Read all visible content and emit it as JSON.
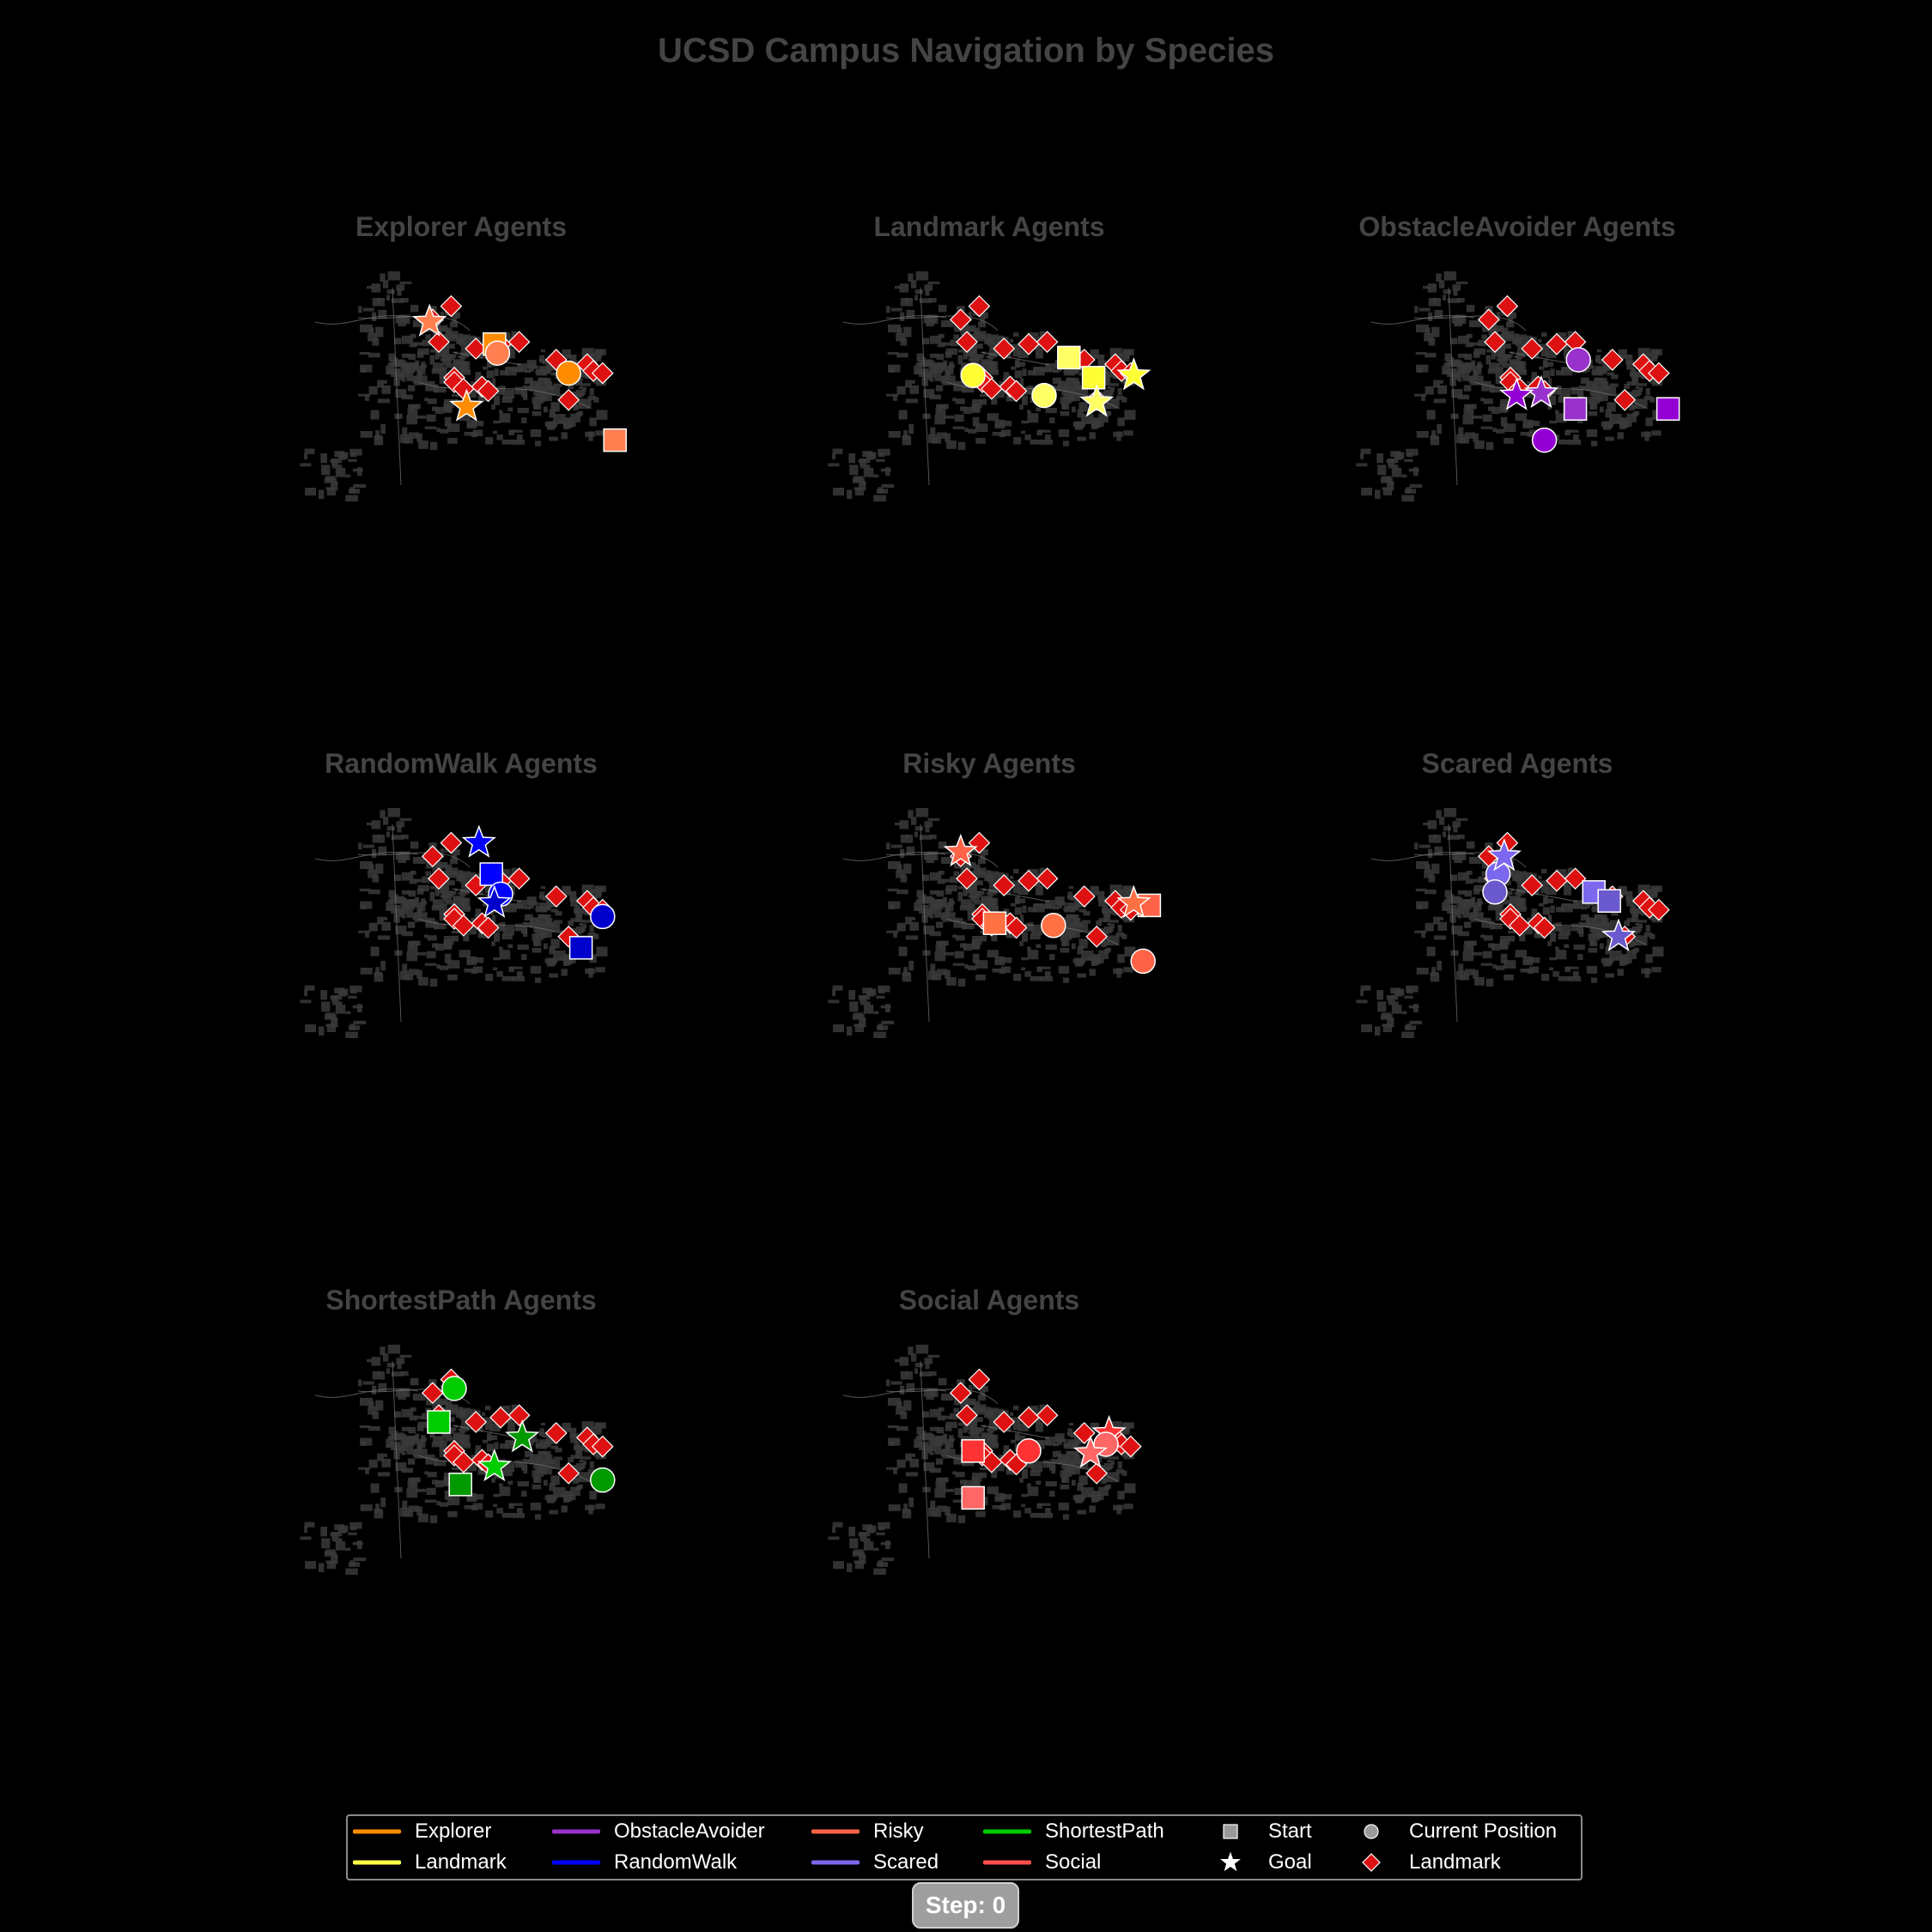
{
  "title": "UCSD Campus Navigation by Species",
  "step_label": "Step: 0",
  "colors": {
    "landmark": "#dd1111",
    "outline": "#ffffff",
    "map_building": "#3a3a3a",
    "map_road": "#777777",
    "title_text": "#444444"
  },
  "legend": {
    "species": [
      {
        "label": "Explorer",
        "color": "#ff8c00"
      },
      {
        "label": "Landmark",
        "color": "#ffff44"
      },
      {
        "label": "ObstacleAvoider",
        "color": "#9932cc"
      },
      {
        "label": "RandomWalk",
        "color": "#0000ff"
      },
      {
        "label": "Risky",
        "color": "#ff6347"
      },
      {
        "label": "Scared",
        "color": "#7b68ee"
      },
      {
        "label": "ShortestPath",
        "color": "#00cc00"
      },
      {
        "label": "Social",
        "color": "#ff4d4d"
      }
    ],
    "markers": [
      {
        "label": "Start",
        "shape": "square"
      },
      {
        "label": "Goal",
        "shape": "star"
      },
      {
        "label": "Current Position",
        "shape": "circle"
      },
      {
        "label": "Landmark",
        "shape": "diamond"
      }
    ]
  },
  "chart_data": {
    "type": "scatter",
    "title": "UCSD Campus Navigation by Species",
    "xlim": [
      0,
      100
    ],
    "ylim": [
      0,
      100
    ],
    "landmarks": [
      [
        44,
        84
      ],
      [
        38,
        78
      ],
      [
        40,
        68
      ],
      [
        52,
        65
      ],
      [
        60,
        67
      ],
      [
        66,
        68
      ],
      [
        78,
        60
      ],
      [
        88,
        58
      ],
      [
        90,
        55
      ],
      [
        93,
        54
      ],
      [
        45,
        52
      ],
      [
        45,
        50
      ],
      [
        48,
        47
      ],
      [
        54,
        48
      ],
      [
        56,
        46
      ],
      [
        82,
        42
      ]
    ],
    "panels": [
      {
        "title": "Explorer Agents",
        "color": "#ff8c00",
        "agents": [
          {
            "color": "#ff8c00",
            "start": [
              58,
              67
            ],
            "current": [
              82,
              54
            ],
            "goal": [
              49,
              39
            ]
          },
          {
            "color": "#ff7f50",
            "start": [
              97,
              24
            ],
            "current": [
              59,
              63
            ],
            "goal": [
              37,
              77
            ]
          }
        ]
      },
      {
        "title": "Landmark Agents",
        "color": "#ffff44",
        "agents": [
          {
            "color": "#ffff33",
            "start": [
              81,
              52
            ],
            "current": [
              42,
              53
            ],
            "goal": [
              94,
              53
            ]
          },
          {
            "color": "#ffff66",
            "start": [
              73,
              61
            ],
            "current": [
              65,
              44
            ],
            "goal": [
              82,
              41
            ]
          }
        ]
      },
      {
        "title": "ObstacleAvoider Agents",
        "color": "#9932cc",
        "agents": [
          {
            "color": "#9932cc",
            "start": [
              66,
              38
            ],
            "current": [
              67,
              60
            ],
            "goal": [
              55,
              45
            ]
          },
          {
            "color": "#9400d3",
            "start": [
              96,
              38
            ],
            "current": [
              56,
              24
            ],
            "goal": [
              47,
              44
            ]
          }
        ]
      },
      {
        "title": "RandomWalk Agents",
        "color": "#0000ff",
        "agents": [
          {
            "color": "#0000ff",
            "start": [
              57,
              70
            ],
            "current": [
              60,
              61
            ],
            "goal": [
              53,
              84
            ]
          },
          {
            "color": "#0000cc",
            "start": [
              86,
              37
            ],
            "current": [
              93,
              51
            ],
            "goal": [
              58,
              57
            ]
          }
        ]
      },
      {
        "title": "Risky Agents",
        "color": "#ff6347",
        "agents": [
          {
            "color": "#ff6347",
            "start": [
              99,
              56
            ],
            "current": [
              97,
              31
            ],
            "goal": [
              38,
              80
            ]
          },
          {
            "color": "#ff7043",
            "start": [
              49,
              48
            ],
            "current": [
              68,
              47
            ],
            "goal": [
              94,
              57
            ]
          }
        ]
      },
      {
        "title": "Scared Agents",
        "color": "#7b68ee",
        "agents": [
          {
            "color": "#7b68ee",
            "start": [
              72,
              62
            ],
            "current": [
              41,
              70
            ],
            "goal": [
              43,
              78
            ]
          },
          {
            "color": "#6a5acd",
            "start": [
              77,
              58
            ],
            "current": [
              40,
              62
            ],
            "goal": [
              80,
              42
            ]
          }
        ]
      },
      {
        "title": "ShortestPath Agents",
        "color": "#00cc00",
        "agents": [
          {
            "color": "#00cc00",
            "start": [
              40,
              65
            ],
            "current": [
              45,
              80
            ],
            "goal": [
              58,
              45
            ]
          },
          {
            "color": "#009900",
            "start": [
              47,
              37
            ],
            "current": [
              93,
              39
            ],
            "goal": [
              67,
              58
            ]
          }
        ]
      },
      {
        "title": "Social Agents",
        "color": "#ff4d4d",
        "agents": [
          {
            "color": "#ff3333",
            "start": [
              42,
              52
            ],
            "current": [
              60,
              52
            ],
            "goal": [
              86,
              60
            ]
          },
          {
            "color": "#ff6666",
            "start": [
              42,
              31
            ],
            "current": [
              85,
              55
            ],
            "goal": [
              80,
              51
            ]
          }
        ]
      }
    ]
  }
}
